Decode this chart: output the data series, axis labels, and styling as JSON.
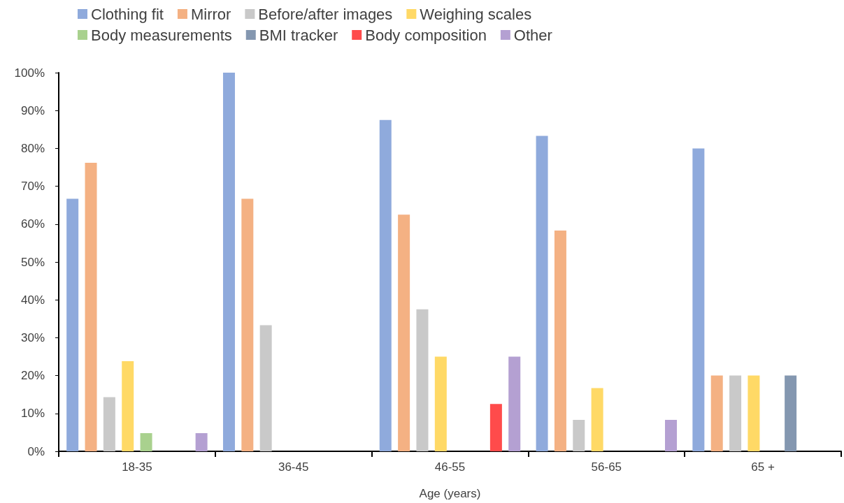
{
  "chart_data": {
    "type": "bar",
    "xlabel": "Age (years)",
    "categories": [
      "18-35",
      "36-45",
      "46-55",
      "56-65",
      "65 +"
    ],
    "series": [
      {
        "name": "Clothing fit",
        "color": "#8faadc",
        "values": [
          66.7,
          100,
          87.5,
          83.3,
          80
        ]
      },
      {
        "name": "Mirror",
        "color": "#f4b183",
        "values": [
          76.2,
          66.7,
          62.5,
          58.3,
          20
        ]
      },
      {
        "name": "Before/after images",
        "color": "#c9c9c9",
        "values": [
          14.3,
          33.3,
          37.5,
          8.3,
          20
        ]
      },
      {
        "name": "Weighing scales",
        "color": "#ffd966",
        "values": [
          23.8,
          0,
          25,
          16.7,
          20
        ]
      },
      {
        "name": "Body measurements",
        "color": "#a9d18e",
        "values": [
          4.8,
          0,
          0,
          0,
          0
        ]
      },
      {
        "name": "BMI tracker",
        "color": "#8497b0",
        "values": [
          0,
          0,
          0,
          0,
          20
        ]
      },
      {
        "name": "Body composition",
        "color": "#ff4b4b",
        "values": [
          0,
          0,
          12.5,
          0,
          0
        ]
      },
      {
        "name": "Other",
        "color": "#b4a0d2",
        "values": [
          4.8,
          0,
          25,
          8.3,
          0
        ]
      }
    ],
    "ylim": [
      0,
      100
    ],
    "yticks": [
      {
        "value": 0,
        "label": "0%"
      },
      {
        "value": 10,
        "label": "10%"
      },
      {
        "value": 20,
        "label": "20%"
      },
      {
        "value": 30,
        "label": "30%"
      },
      {
        "value": 40,
        "label": "40%"
      },
      {
        "value": 50,
        "label": "50%"
      },
      {
        "value": 60,
        "label": "60%"
      },
      {
        "value": 70,
        "label": "70%"
      },
      {
        "value": 80,
        "label": "80%"
      },
      {
        "value": 90,
        "label": "90%"
      },
      {
        "value": 100,
        "label": "100%"
      }
    ],
    "grid": false,
    "legend": "top"
  }
}
